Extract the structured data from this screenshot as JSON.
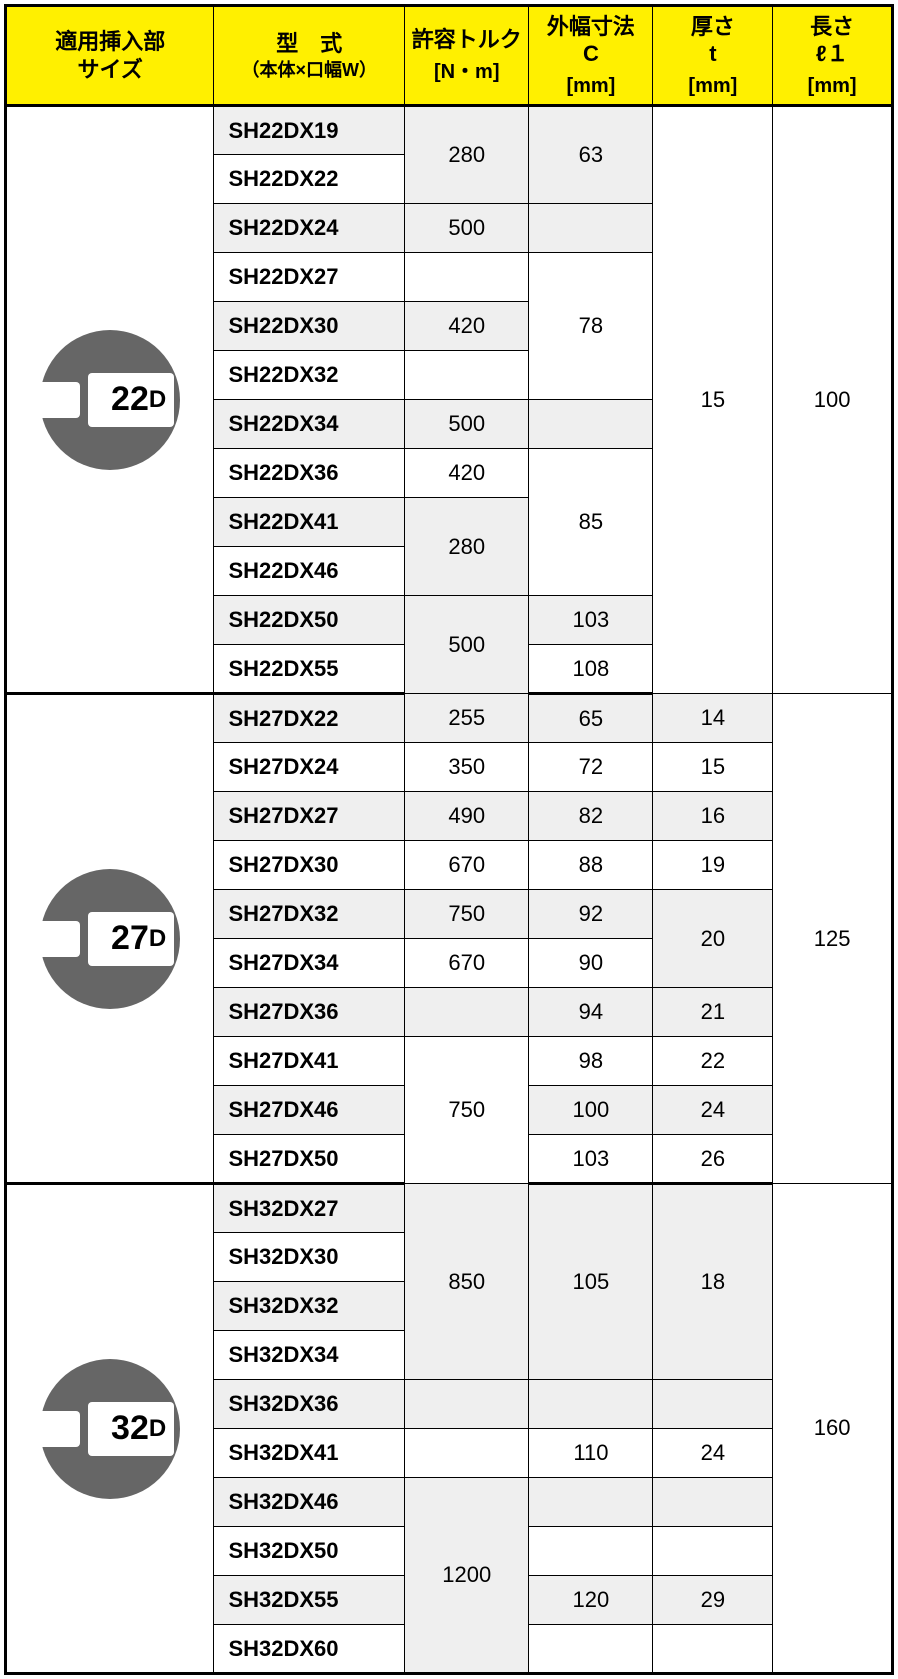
{
  "header": {
    "col1": {
      "line1": "適用挿入部",
      "line2": "サイズ"
    },
    "col2": {
      "line1": "型　式",
      "sub": "（本体×口幅W）"
    },
    "col3": {
      "line1": "許容トルク",
      "unit": "[N・m]"
    },
    "col4": {
      "line1": "外幅寸法",
      "line2": "C",
      "unit": "[mm]"
    },
    "col5": {
      "line1": "厚さ",
      "line2": "t",
      "unit": "[mm]"
    },
    "col6": {
      "line1": "長さ",
      "line2": "ℓ１",
      "unit": "[mm]"
    }
  },
  "groups": [
    {
      "icon": {
        "num": "22",
        "d": "D"
      },
      "thickness": "15",
      "length": "100",
      "rows": [
        {
          "model": "SH22DX19",
          "torque": "280",
          "torqueSpan": 2,
          "c": "63",
          "cSpan": 2
        },
        {
          "model": "SH22DX22"
        },
        {
          "model": "SH22DX24",
          "torque": "500",
          "torqueSpan": 1,
          "c": "",
          "cSpan": 1
        },
        {
          "model": "SH22DX27",
          "torque": "",
          "torqueSpan": 1,
          "c": "78",
          "cSpan": 3
        },
        {
          "model": "SH22DX30",
          "torque": "420",
          "torqueSpan": 1
        },
        {
          "model": "SH22DX32",
          "torque": "",
          "torqueSpan": 1
        },
        {
          "model": "SH22DX34",
          "torque": "500",
          "torqueSpan": 1,
          "c": "",
          "cSpan": 1
        },
        {
          "model": "SH22DX36",
          "torque": "420",
          "torqueSpan": 1,
          "c": "85",
          "cSpan": 3
        },
        {
          "model": "SH22DX41",
          "torque": "280",
          "torqueSpan": 2
        },
        {
          "model": "SH22DX46"
        },
        {
          "model": "SH22DX50",
          "torque": "500",
          "torqueSpan": 2,
          "c": "103",
          "cSpan": 1
        },
        {
          "model": "SH22DX55",
          "c": "108",
          "cSpan": 1
        }
      ]
    },
    {
      "icon": {
        "num": "27",
        "d": "D"
      },
      "length": "125",
      "rows": [
        {
          "model": "SH27DX22",
          "torque": "255",
          "torqueSpan": 1,
          "c": "65",
          "cSpan": 1,
          "t": "14",
          "tSpan": 1
        },
        {
          "model": "SH27DX24",
          "torque": "350",
          "torqueSpan": 1,
          "c": "72",
          "cSpan": 1,
          "t": "15",
          "tSpan": 1
        },
        {
          "model": "SH27DX27",
          "torque": "490",
          "torqueSpan": 1,
          "c": "82",
          "cSpan": 1,
          "t": "16",
          "tSpan": 1
        },
        {
          "model": "SH27DX30",
          "torque": "670",
          "torqueSpan": 1,
          "c": "88",
          "cSpan": 1,
          "t": "19",
          "tSpan": 1
        },
        {
          "model": "SH27DX32",
          "torque": "750",
          "torqueSpan": 1,
          "c": "92",
          "cSpan": 1,
          "t": "20",
          "tSpan": 2
        },
        {
          "model": "SH27DX34",
          "torque": "670",
          "torqueSpan": 1,
          "c": "90",
          "cSpan": 1
        },
        {
          "model": "SH27DX36",
          "torque": "",
          "torqueSpan": 1,
          "c": "94",
          "cSpan": 1,
          "t": "21",
          "tSpan": 1
        },
        {
          "model": "SH27DX41",
          "torque": "750",
          "torqueSpan": 3,
          "c": "98",
          "cSpan": 1,
          "t": "22",
          "tSpan": 1
        },
        {
          "model": "SH27DX46",
          "c": "100",
          "cSpan": 1,
          "t": "24",
          "tSpan": 1
        },
        {
          "model": "SH27DX50",
          "c": "103",
          "cSpan": 1,
          "t": "26",
          "tSpan": 1
        }
      ]
    },
    {
      "icon": {
        "num": "32",
        "d": "D"
      },
      "length": "160",
      "rows": [
        {
          "model": "SH32DX27",
          "torque": "850",
          "torqueSpan": 4,
          "c": "105",
          "cSpan": 4,
          "t": "18",
          "tSpan": 4
        },
        {
          "model": "SH32DX30"
        },
        {
          "model": "SH32DX32"
        },
        {
          "model": "SH32DX34"
        },
        {
          "model": "SH32DX36",
          "torque": "",
          "torqueSpan": 1,
          "c": "",
          "cSpan": 1,
          "t": "",
          "tSpan": 1
        },
        {
          "model": "SH32DX41",
          "torque": "",
          "torqueSpan": 1,
          "c": "110",
          "cSpan": 1,
          "t": "24",
          "tSpan": 1
        },
        {
          "model": "SH32DX46",
          "torque": "1200",
          "torqueSpan": 4,
          "c": "",
          "cSpan": 1,
          "t": "",
          "tSpan": 1
        },
        {
          "model": "SH32DX50",
          "c": "",
          "cSpan": 1,
          "t": "",
          "tSpan": 1
        },
        {
          "model": "SH32DX55",
          "c": "120",
          "cSpan": 1,
          "t": "29",
          "tSpan": 1
        },
        {
          "model": "SH32DX60",
          "c": "",
          "cSpan": 1,
          "t": "",
          "tSpan": 1
        }
      ]
    }
  ]
}
